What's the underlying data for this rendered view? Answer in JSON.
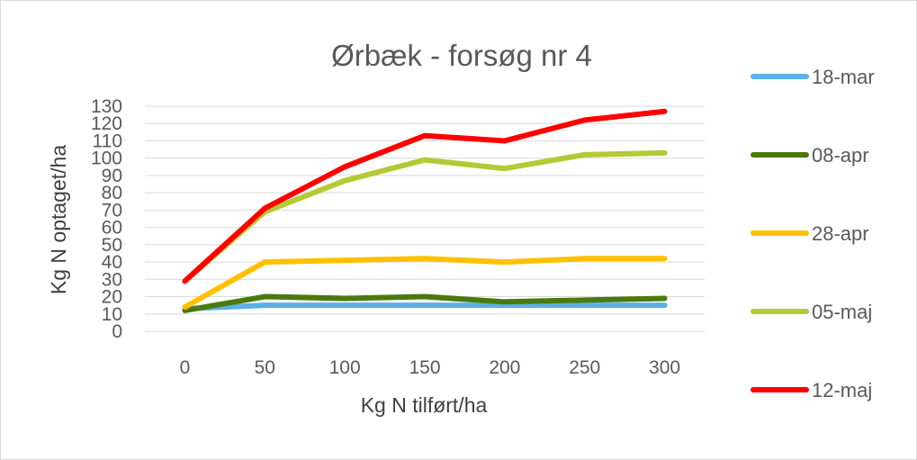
{
  "chart_data": {
    "type": "line",
    "title": "Ørbæk - forsøg nr 4",
    "xlabel": "Kg N tilført/ha",
    "ylabel": "Kg N optaget/ha",
    "categories": [
      "0",
      "50",
      "100",
      "150",
      "200",
      "250",
      "300"
    ],
    "ylim": [
      0,
      130
    ],
    "ystep": 10,
    "grid": true,
    "legend_position": "right",
    "series": [
      {
        "name": "18-mar",
        "color": "#5bb0e5",
        "values": [
          13,
          15,
          15,
          15,
          15,
          15,
          15
        ]
      },
      {
        "name": "08-apr",
        "color": "#4a7a0c",
        "values": [
          12,
          20,
          19,
          20,
          17,
          18,
          19
        ]
      },
      {
        "name": "28-apr",
        "color": "#ffc000",
        "values": [
          14,
          40,
          41,
          42,
          40,
          42,
          42
        ]
      },
      {
        "name": "05-maj",
        "color": "#b5c934",
        "values": [
          29,
          69,
          87,
          99,
          94,
          102,
          103
        ]
      },
      {
        "name": "12-maj",
        "color": "#ff0000",
        "values": [
          29,
          71,
          95,
          113,
          110,
          122,
          127
        ]
      }
    ]
  }
}
